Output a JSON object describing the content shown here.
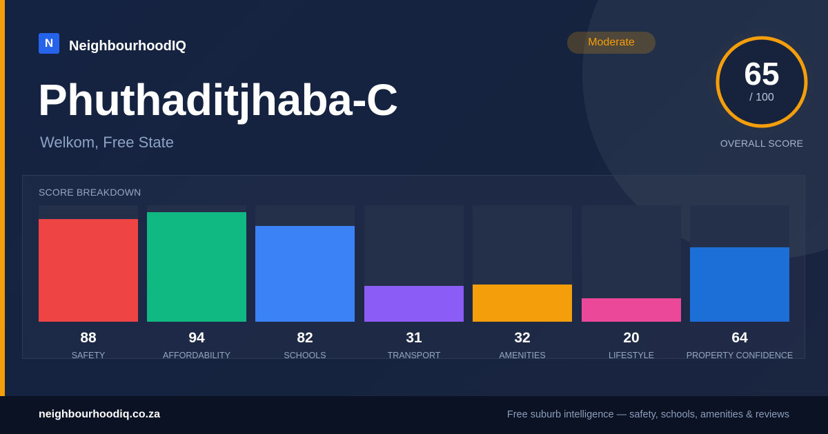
{
  "brand": {
    "logo_letter": "N",
    "name": "NeighbourhoodIQ",
    "color": "#2563eb"
  },
  "badge": {
    "label": "Moderate",
    "color": "#f59e0b"
  },
  "suburb": {
    "name": "Phuthaditjhaba-C",
    "location": "Welkom, Free State"
  },
  "overall": {
    "score": "65",
    "max_label": "/ 100",
    "score_fraction": 0.65,
    "label": "OVERALL SCORE",
    "ring_color": "#f59e0b"
  },
  "breakdown": {
    "title": "SCORE BREAKDOWN",
    "items": [
      {
        "value": "88",
        "label": "SAFETY",
        "score": 88,
        "color": "#ef4444"
      },
      {
        "value": "94",
        "label": "AFFORDABILITY",
        "score": 94,
        "color": "#10b981"
      },
      {
        "value": "82",
        "label": "SCHOOLS",
        "score": 82,
        "color": "#3b82f6"
      },
      {
        "value": "31",
        "label": "TRANSPORT",
        "score": 31,
        "color": "#8b5cf6"
      },
      {
        "value": "32",
        "label": "AMENITIES",
        "score": 32,
        "color": "#f59e0b"
      },
      {
        "value": "20",
        "label": "LIFESTYLE",
        "score": 20,
        "color": "#ec4899"
      },
      {
        "value": "64",
        "label": "PROPERTY CONFIDENCE",
        "score": 64,
        "color": "#1d6fd8"
      }
    ]
  },
  "footer": {
    "domain": "neighbourhoodiq.co.za",
    "tagline": "Free suburb intelligence — safety, schools, amenities & reviews"
  }
}
